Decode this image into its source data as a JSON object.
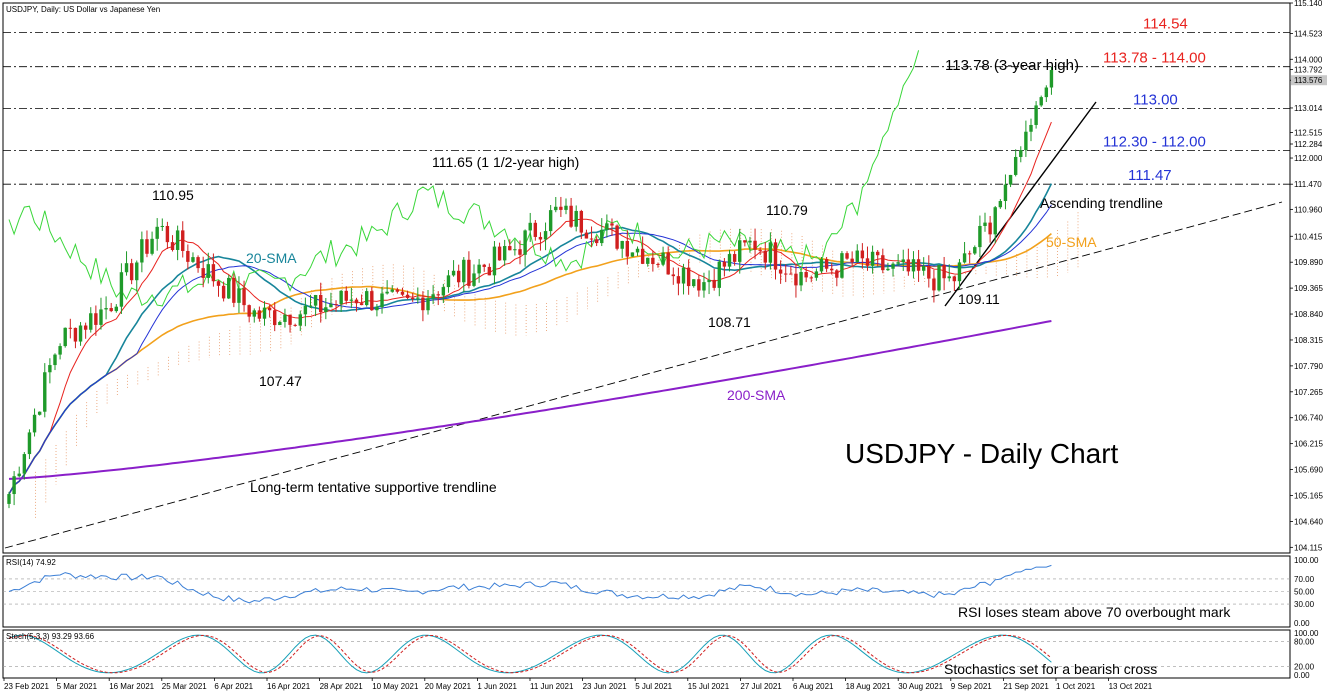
{
  "header": {
    "symbol_label": "USDJPY, Daily:  US Dollar vs Japanese Yen"
  },
  "title": "USDJPY - Daily Chart",
  "annotations": {
    "high_3y": "113.78 (3-year high)",
    "high_1_5y": "111.65 (1 1/2-year high)",
    "p110_95": "110.95",
    "p110_79": "110.79",
    "p107_47": "107.47",
    "p108_71": "108.71",
    "p109_11": "109.11",
    "asc_trend": "Ascending trendline",
    "lt_trend": "Long-term tentative supportive trendline",
    "sma20": "20-SMA",
    "sma50": "50-SMA",
    "sma200": "200-SMA"
  },
  "levels": [
    {
      "label": "114.54",
      "price": 114.54,
      "color": "#e8231f"
    },
    {
      "label": "113.78 - 114.00",
      "price": 113.85,
      "color": "#e8231f"
    },
    {
      "label": "113.00",
      "price": 113.0,
      "color": "#2433d6"
    },
    {
      "label": "112.30 - 112.00",
      "price": 112.15,
      "color": "#2433d6"
    },
    {
      "label": "111.47",
      "price": 111.47,
      "color": "#2433d6"
    }
  ],
  "price_axis": {
    "ticks": [
      "115.140",
      "114.523",
      "114.000",
      "113.792",
      "113.576",
      "113.014",
      "112.515",
      "112.284",
      "112.000",
      "111.470",
      "110.960",
      "110.415",
      "109.890",
      "109.365",
      "108.840",
      "108.315",
      "107.790",
      "107.265",
      "106.740",
      "106.215",
      "105.690",
      "105.165",
      "104.640",
      "104.115"
    ],
    "current_price": "113.576"
  },
  "date_axis": [
    "23 Feb 2021",
    "5 Mar 2021",
    "16 Mar 2021",
    "25 Mar 2021",
    "6 Apr 2021",
    "16 Apr 2021",
    "28 Apr 2021",
    "10 May 2021",
    "20 May 2021",
    "1 Jun 2021",
    "11 Jun 2021",
    "23 Jun 2021",
    "5 Jul 2021",
    "15 Jul 2021",
    "27 Jul 2021",
    "6 Aug 2021",
    "18 Aug 2021",
    "30 Aug 2021",
    "9 Sep 2021",
    "21 Sep 2021",
    "1 Oct 2021",
    "13 Oct 2021"
  ],
  "rsi": {
    "header": "RSI(14) 74.92",
    "ticks": [
      "100.00",
      "70.00",
      "50.00",
      "30.00",
      "0.00"
    ],
    "note": "RSI loses steam above 70 overbought mark"
  },
  "stoch": {
    "header": "Stoch(5,3,3) 93.29 93.66",
    "ticks": [
      "100.00",
      "80.00",
      "20.00",
      "0.00"
    ],
    "note": "Stochastics set for a bearish cross"
  },
  "colors": {
    "bull": "#1f9a2a",
    "bear": "#d01f1f",
    "sma20": "#17859a",
    "sma50": "#f2a11c",
    "sma200": "#8a1fc9",
    "tenkan": "#e8231f",
    "kijun": "#2433d6",
    "chikou": "#39d639",
    "cloud": "#e89a6a",
    "rsi": "#3b7fd6",
    "stoch_main": "#17a0b8",
    "stoch_signal": "#d01f1f"
  },
  "chart_data": {
    "type": "candlestick",
    "title": "USDJPY - Daily Chart",
    "ylim": [
      104.0,
      115.14
    ],
    "close_path": [
      [
        "23 Feb 2021",
        105.2
      ],
      [
        "5 Mar 2021",
        108.3
      ],
      [
        "16 Mar 2021",
        109.0
      ],
      [
        "25 Mar 2021",
        110.6
      ],
      [
        "6 Apr 2021",
        109.7
      ],
      [
        "16 Apr 2021",
        108.8
      ],
      [
        "28 Apr 2021",
        108.9
      ],
      [
        "10 May 2021",
        109.2
      ],
      [
        "20 May 2021",
        109.0
      ],
      [
        "1 Jun 2021",
        109.6
      ],
      [
        "11 Jun 2021",
        110.0
      ],
      [
        "23 Jun 2021",
        110.9
      ],
      [
        "5 Jul 2021",
        110.5
      ],
      [
        "15 Jul 2021",
        110.0
      ],
      [
        "27 Jul 2021",
        109.5
      ],
      [
        "6 Aug 2021",
        110.3
      ],
      [
        "18 Aug 2021",
        109.6
      ],
      [
        "30 Aug 2021",
        109.9
      ],
      [
        "9 Sep 2021",
        109.7
      ],
      [
        "21 Sep 2021",
        109.5
      ],
      [
        "1 Oct 2021",
        111.1
      ],
      [
        "13 Oct 2021",
        113.6
      ]
    ]
  }
}
